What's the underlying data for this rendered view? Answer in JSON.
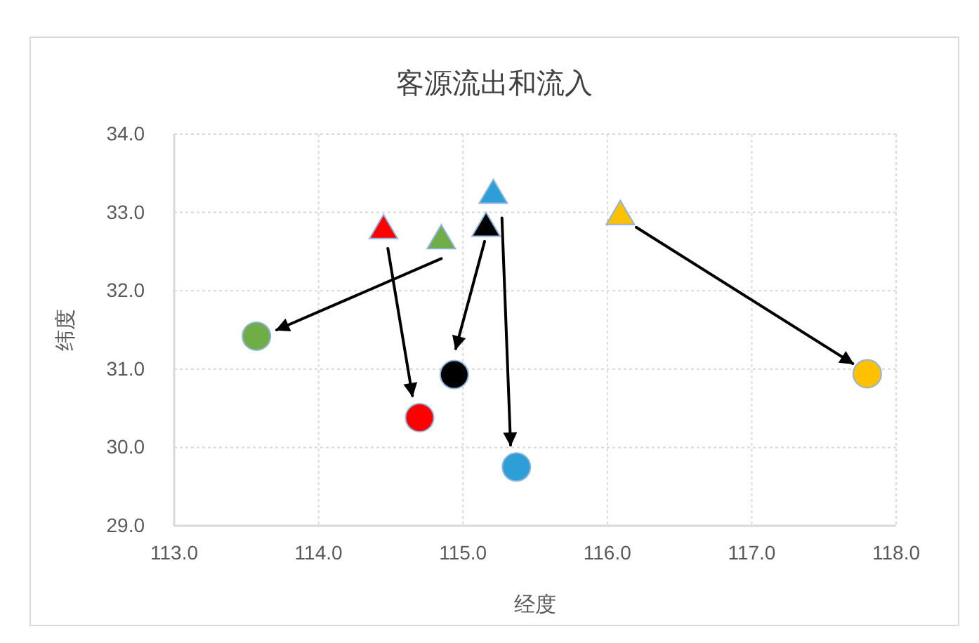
{
  "chart_data": {
    "type": "scatter",
    "title": "客源流出和流入",
    "xlabel": "经度",
    "ylabel": "纬度",
    "xlim": [
      113,
      118
    ],
    "xticks": [
      {
        "value": 113,
        "label": "113.0"
      },
      {
        "value": 114,
        "label": "114.0"
      },
      {
        "value": 115,
        "label": "115.0"
      },
      {
        "value": 116,
        "label": "116.0"
      },
      {
        "value": 117,
        "label": "117.0"
      },
      {
        "value": 118,
        "label": "118.0"
      }
    ],
    "ylim": [
      29,
      34
    ],
    "yticks": [
      {
        "value": 29,
        "label": "29.0"
      },
      {
        "value": 30,
        "label": "30.0"
      },
      {
        "value": 31,
        "label": "31.0"
      },
      {
        "value": 32,
        "label": "32.0"
      },
      {
        "value": 33,
        "label": "33.0"
      },
      {
        "value": 34,
        "label": "34.0"
      }
    ],
    "grid": true,
    "series": [
      {
        "marker": "triangle",
        "x": [
          114.45,
          114.85,
          115.16,
          115.21,
          116.09
        ],
        "values": [
          32.81,
          32.68,
          32.84,
          33.26,
          32.99
        ],
        "colors": [
          "#ff0000",
          "#70ad47",
          "#000000",
          "#2e9fd6",
          "#ffc000"
        ]
      },
      {
        "marker": "circle",
        "x": [
          113.57,
          114.7,
          114.94,
          115.37,
          117.8
        ],
        "values": [
          31.42,
          30.38,
          30.93,
          29.75,
          30.94
        ],
        "colors": [
          "#70ad47",
          "#ff0000",
          "#000000",
          "#2e9fd6",
          "#ffc000"
        ]
      },
      {
        "type": "line",
        "color": "#000000",
        "x": [
          114.48,
          114.65
        ],
        "values": [
          32.54,
          30.66
        ]
      },
      {
        "type": "line",
        "color": "#000000",
        "x": [
          114.85,
          113.71
        ],
        "values": [
          32.41,
          31.5
        ]
      },
      {
        "type": "line",
        "color": "#000000",
        "x": [
          115.15,
          114.95
        ],
        "values": [
          32.63,
          31.26
        ]
      },
      {
        "type": "line",
        "color": "#000000",
        "x": [
          115.27,
          115.33
        ],
        "values": [
          32.93,
          30.03
        ]
      },
      {
        "type": "line",
        "color": "#000000",
        "x": [
          116.2,
          117.7
        ],
        "values": [
          32.81,
          31.07
        ]
      }
    ]
  }
}
